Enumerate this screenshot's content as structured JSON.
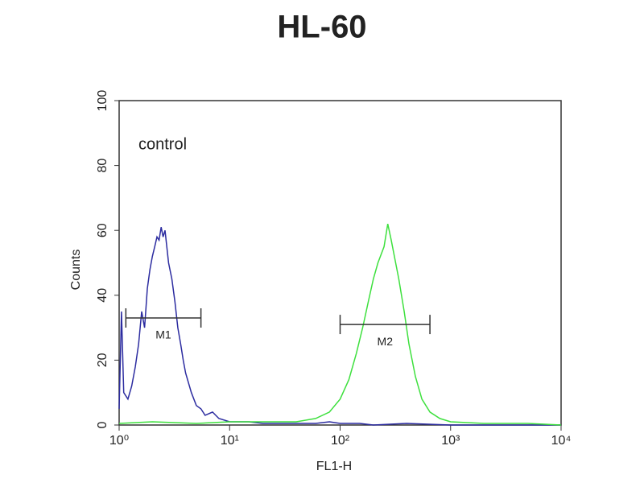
{
  "chart_data": {
    "type": "line",
    "title": "HL-60",
    "x_label": "FL1-H",
    "y_label": "Counts",
    "annotation": "control",
    "x_log": true,
    "xlim": [
      1,
      10000
    ],
    "xticks": [
      {
        "value": 1,
        "label": "10⁰"
      },
      {
        "value": 10,
        "label": "10¹"
      },
      {
        "value": 100,
        "label": "10²"
      },
      {
        "value": 1000,
        "label": "10³"
      },
      {
        "value": 10000,
        "label": "10⁴"
      }
    ],
    "ylim": [
      0,
      100
    ],
    "yticks": [
      0,
      20,
      40,
      60,
      80,
      100
    ],
    "series": [
      {
        "color": "#2c2ca0",
        "x": [
          1.0,
          1.05,
          1.1,
          1.2,
          1.3,
          1.4,
          1.5,
          1.6,
          1.7,
          1.8,
          1.9,
          2.0,
          2.1,
          2.2,
          2.3,
          2.4,
          2.5,
          2.6,
          2.7,
          2.8,
          3.0,
          3.2,
          3.4,
          3.6,
          3.8,
          4.0,
          4.5,
          5,
          5.5,
          6,
          7,
          8,
          10,
          15,
          20,
          40,
          60,
          80,
          100,
          150,
          200,
          400,
          1000,
          10000
        ],
        "values": [
          5,
          35,
          10,
          8,
          12,
          18,
          25,
          35,
          30,
          42,
          48,
          52,
          55,
          58,
          57,
          61,
          58,
          60,
          55,
          50,
          45,
          38,
          30,
          25,
          20,
          16,
          10,
          6,
          5,
          3,
          4,
          2,
          1,
          1,
          0.5,
          0.5,
          0.5,
          1,
          0.5,
          0.5,
          0,
          0.5,
          0,
          0
        ]
      },
      {
        "color": "#3ee03e",
        "x": [
          1,
          2,
          5,
          10,
          20,
          40,
          60,
          80,
          100,
          120,
          140,
          160,
          180,
          200,
          220,
          250,
          270,
          290,
          310,
          340,
          380,
          420,
          480,
          550,
          650,
          800,
          1000,
          2000,
          5000,
          10000
        ],
        "values": [
          0.5,
          1,
          0.5,
          1,
          1,
          1,
          2,
          4,
          8,
          14,
          22,
          30,
          38,
          45,
          50,
          55,
          62,
          57,
          52,
          45,
          35,
          25,
          15,
          8,
          4,
          2,
          1,
          0.5,
          0.5,
          0
        ]
      }
    ],
    "markers": [
      {
        "label": "M1",
        "range": [
          1.15,
          5.5
        ],
        "y": 33
      },
      {
        "label": "M2",
        "range": [
          100,
          650
        ],
        "y": 31
      }
    ]
  }
}
